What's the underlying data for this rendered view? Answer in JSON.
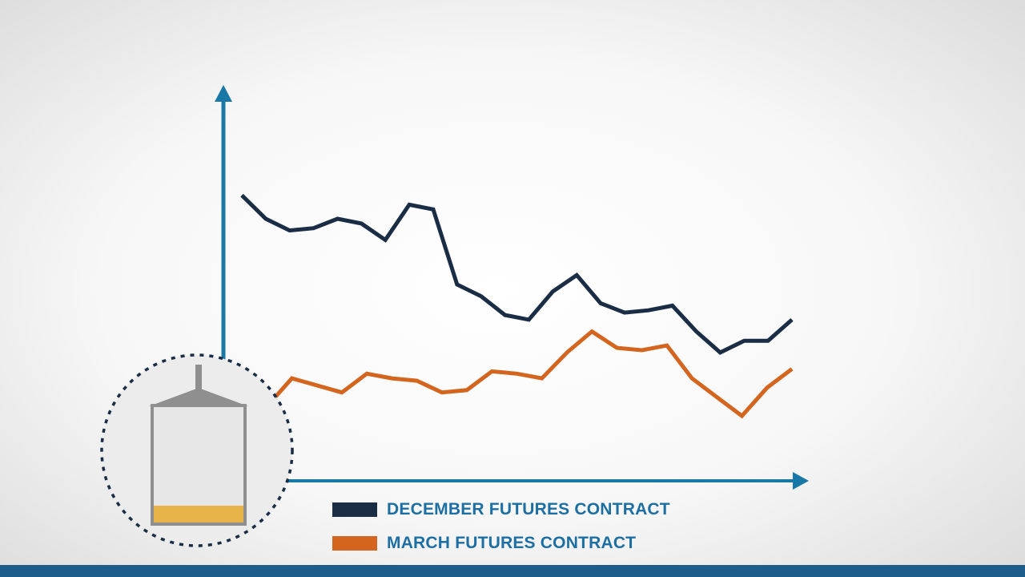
{
  "chart_data": {
    "type": "line",
    "title": "",
    "xlabel": "",
    "ylabel": "",
    "x": [
      1,
      2,
      3,
      4,
      5,
      6,
      7,
      8,
      9,
      10,
      11,
      12,
      13,
      14,
      15,
      16,
      17,
      18,
      19,
      20,
      21,
      22,
      23,
      24,
      25,
      26,
      27,
      28,
      29,
      30
    ],
    "series": [
      {
        "name": "DECEMBER FUTURES CONTRACT",
        "values": [
          78,
          68,
          63,
          64,
          68,
          66,
          59,
          74,
          72,
          40,
          35,
          27,
          25,
          37,
          44,
          32,
          28,
          29,
          31,
          20,
          11,
          16,
          16,
          25,
          null,
          null,
          null,
          null,
          null,
          null
        ]
      },
      {
        "name": "MARCH FUTURES CONTRACT",
        "values": [
          -8,
          -12,
          0,
          -3,
          -6,
          2,
          0,
          -1,
          -6,
          -5,
          3,
          2,
          0,
          11,
          20,
          13,
          12,
          14,
          0,
          -8,
          -16,
          -4,
          4,
          null,
          null,
          null,
          null,
          null,
          null,
          null
        ]
      }
    ],
    "ylim": [
      -30,
      110
    ],
    "grid": false,
    "legend_position": "bottom",
    "colors": {
      "axis": "#1a78a6",
      "december": "#1b2d45",
      "march": "#d3651f"
    }
  },
  "illustration": {
    "icon": "grain-silo-icon",
    "colors": {
      "silo_frame": "#8f8f8f",
      "grain": "#e8b44a",
      "circle_border": "#1b2d45"
    }
  },
  "colors": {
    "bottom_bar": "#1d5d8c"
  }
}
